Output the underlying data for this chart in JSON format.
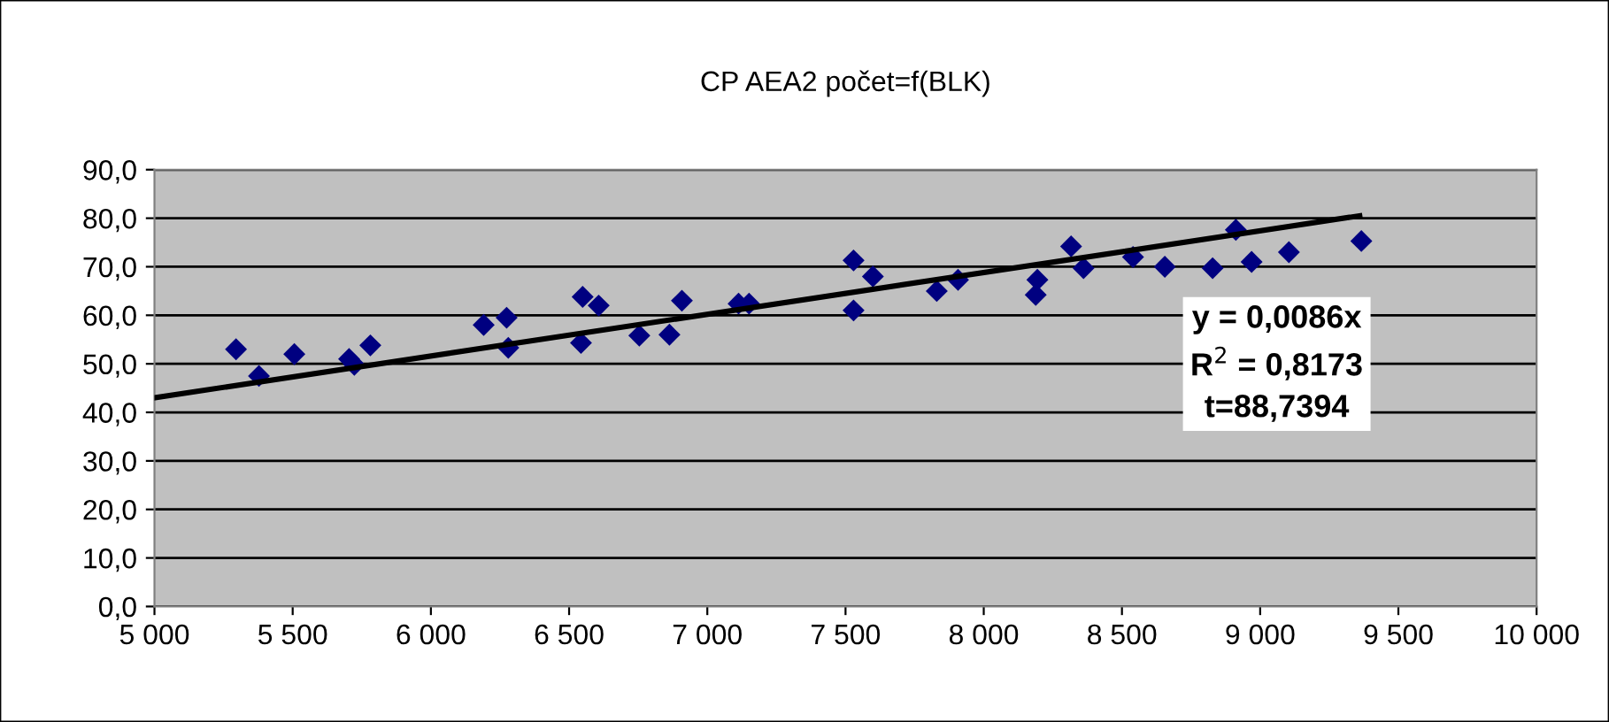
{
  "chart_data": {
    "type": "scatter",
    "title": "CP AEA2 počet=f(BLK)",
    "xlim": [
      5000,
      10000
    ],
    "xticks": [
      {
        "value": 5000,
        "label": "5 000"
      },
      {
        "value": 5500,
        "label": "5 500"
      },
      {
        "value": 6000,
        "label": "6 000"
      },
      {
        "value": 6500,
        "label": "6 500"
      },
      {
        "value": 7000,
        "label": "7 000"
      },
      {
        "value": 7500,
        "label": "7 500"
      },
      {
        "value": 8000,
        "label": "8 000"
      },
      {
        "value": 8500,
        "label": "8 500"
      },
      {
        "value": 9000,
        "label": "9 000"
      },
      {
        "value": 9500,
        "label": "9 500"
      },
      {
        "value": 10000,
        "label": "10 000"
      }
    ],
    "ylim": [
      0,
      90
    ],
    "yticks": [
      {
        "value": 0,
        "label": "0,0"
      },
      {
        "value": 10,
        "label": "10,0"
      },
      {
        "value": 20,
        "label": "20,0"
      },
      {
        "value": 30,
        "label": "30,0"
      },
      {
        "value": 40,
        "label": "40,0"
      },
      {
        "value": 50,
        "label": "50,0"
      },
      {
        "value": 60,
        "label": "60,0"
      },
      {
        "value": 70,
        "label": "70,0"
      },
      {
        "value": 80,
        "label": "80,0"
      },
      {
        "value": 90,
        "label": "90,0"
      }
    ],
    "grid": "y",
    "legend": false,
    "series": [
      {
        "color": "#000080",
        "marker": "diamond",
        "x": [
          5295,
          5378,
          5506,
          5704,
          5723,
          5781,
          6191,
          6274,
          6280,
          6543,
          6549,
          6607,
          6754,
          6863,
          6908,
          7113,
          7151,
          7529,
          7529,
          7599,
          7830,
          7907,
          8188,
          8194,
          8316,
          8361,
          8540,
          8655,
          8828,
          8912,
          8969,
          9104,
          9366
        ],
        "values": [
          53,
          47.5,
          52,
          51,
          49.8,
          53.8,
          58,
          59.5,
          53.3,
          54.3,
          63.8,
          62,
          55.8,
          56,
          63,
          62.4,
          62.4,
          71.3,
          61,
          68,
          65,
          67.3,
          64.2,
          67.3,
          74.2,
          69.7,
          72,
          70,
          69.7,
          77.6,
          71,
          73,
          75.3
        ]
      },
      {
        "type": "line",
        "color": "#000000",
        "marker": "none",
        "line_style": "solid",
        "x": [
          5000,
          9360
        ],
        "values": [
          43,
          80.5
        ]
      }
    ],
    "annotations": [
      "y = 0,0086x\nR$^{2}$ = 0,8173\nt=88,7394"
    ]
  }
}
